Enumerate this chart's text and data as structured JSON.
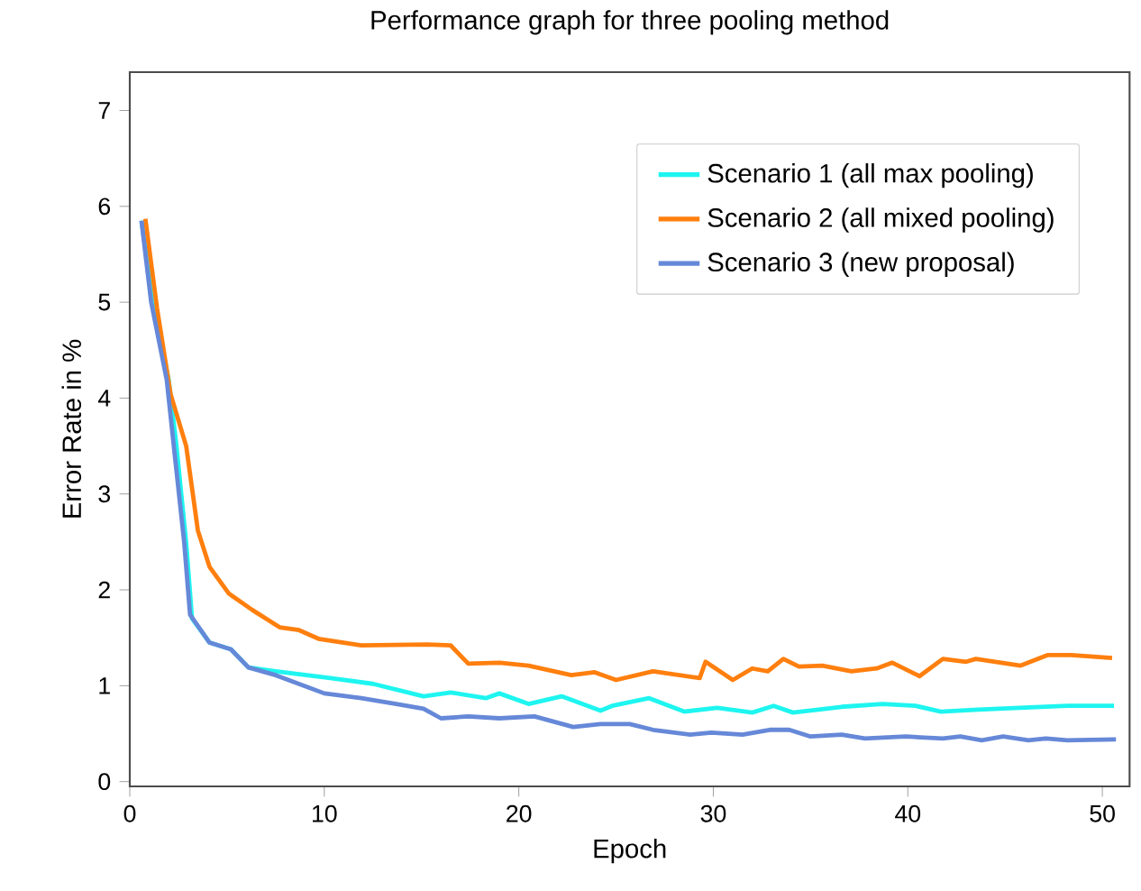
{
  "chart_data": {
    "type": "line",
    "title": "Performance graph for three pooling method",
    "xlabel": "Epoch",
    "ylabel": "Error Rate in %",
    "xlim": [
      0,
      51.4
    ],
    "ylim": [
      -0.05,
      7.4
    ],
    "xticks": [
      0,
      10,
      20,
      30,
      40,
      50
    ],
    "yticks": [
      0,
      1,
      2,
      3,
      4,
      5,
      6,
      7
    ],
    "grid": false,
    "legend": "top right",
    "line_style": "solid",
    "marker": "none",
    "series": [
      {
        "name": "Scenario 1 (all max pooling)",
        "color": "#1ef5f0",
        "x": [
          0.6,
          1.2,
          2.0,
          2.4,
          2.9,
          3.2,
          4.1,
          5.2,
          6.1,
          7.5,
          10.3,
          12.5,
          15.1,
          16.5,
          18.3,
          19.0,
          20.5,
          22.2,
          24.2,
          24.8,
          26.7,
          28.5,
          30.2,
          32.0,
          33.1,
          34.1,
          36.6,
          38.7,
          40.4,
          41.7,
          43.6,
          48.2,
          50.6
        ],
        "values": [
          5.85,
          5.0,
          4.19,
          3.5,
          2.49,
          1.7,
          1.45,
          1.38,
          1.19,
          1.15,
          1.08,
          1.02,
          0.89,
          0.93,
          0.87,
          0.92,
          0.81,
          0.89,
          0.74,
          0.79,
          0.87,
          0.73,
          0.77,
          0.72,
          0.79,
          0.72,
          0.78,
          0.81,
          0.79,
          0.73,
          0.75,
          0.79,
          0.79
        ]
      },
      {
        "name": "Scenario 2 (all mixed pooling)",
        "color": "#ff7f0e",
        "x": [
          0.8,
          1.4,
          2.1,
          2.9,
          3.5,
          4.1,
          5.1,
          6.3,
          7.7,
          8.7,
          9.7,
          11.9,
          15.3,
          16.5,
          17.4,
          19.0,
          20.5,
          22.7,
          23.9,
          25.0,
          26.9,
          29.3,
          29.6,
          31.0,
          32.0,
          32.8,
          33.6,
          34.4,
          35.6,
          37.1,
          38.4,
          39.2,
          40.6,
          41.8,
          43.0,
          43.5,
          45.8,
          47.2,
          48.4,
          50.5
        ],
        "values": [
          5.87,
          4.94,
          4.04,
          3.5,
          2.62,
          2.24,
          1.96,
          1.79,
          1.61,
          1.58,
          1.49,
          1.42,
          1.43,
          1.42,
          1.23,
          1.24,
          1.21,
          1.11,
          1.14,
          1.06,
          1.15,
          1.08,
          1.25,
          1.06,
          1.18,
          1.15,
          1.28,
          1.2,
          1.21,
          1.15,
          1.18,
          1.24,
          1.1,
          1.28,
          1.25,
          1.28,
          1.21,
          1.32,
          1.32,
          1.29
        ]
      },
      {
        "name": "Scenario 3 (new proposal)",
        "color": "#6688d8",
        "x": [
          0.6,
          1.1,
          1.9,
          2.3,
          2.8,
          3.1,
          4.1,
          5.2,
          6.1,
          7.5,
          10.0,
          11.9,
          13.7,
          15.1,
          16.0,
          17.4,
          19.0,
          20.8,
          22.8,
          24.2,
          25.7,
          26.9,
          28.8,
          29.9,
          31.5,
          32.9,
          33.9,
          35.0,
          36.6,
          37.8,
          39.9,
          41.8,
          42.7,
          43.8,
          44.9,
          46.2,
          47.1,
          48.2,
          50.7
        ],
        "values": [
          5.85,
          5.0,
          4.19,
          3.43,
          2.49,
          1.74,
          1.45,
          1.38,
          1.19,
          1.11,
          0.92,
          0.87,
          0.81,
          0.76,
          0.66,
          0.68,
          0.66,
          0.68,
          0.57,
          0.6,
          0.6,
          0.54,
          0.49,
          0.51,
          0.49,
          0.54,
          0.54,
          0.47,
          0.49,
          0.45,
          0.47,
          0.45,
          0.47,
          0.43,
          0.47,
          0.43,
          0.45,
          0.43,
          0.44
        ]
      }
    ]
  }
}
